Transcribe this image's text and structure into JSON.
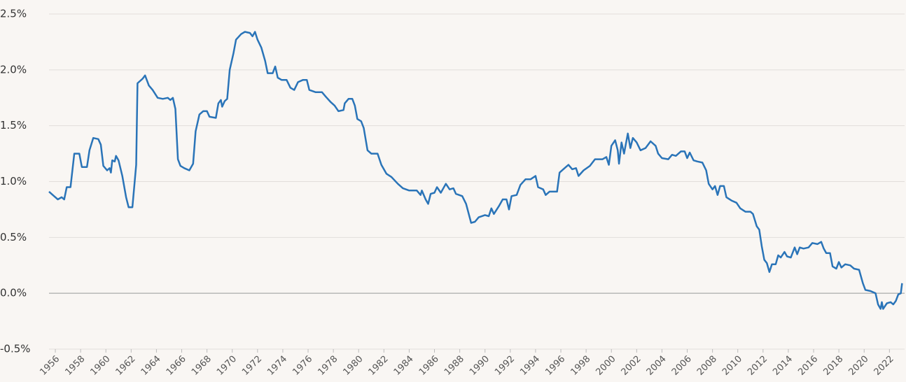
{
  "chart_data": {
    "type": "line",
    "x": [
      1955.5,
      1955.9,
      1956.2,
      1956.5,
      1956.7,
      1956.9,
      1957.2,
      1957.5,
      1957.9,
      1958.1,
      1958.5,
      1958.7,
      1959.0,
      1959.4,
      1959.6,
      1959.8,
      1960.1,
      1960.3,
      1960.4,
      1960.5,
      1960.7,
      1960.8,
      1961.0,
      1961.3,
      1961.6,
      1961.8,
      1962.1,
      1962.4,
      1962.5,
      1962.9,
      1963.1,
      1963.4,
      1963.7,
      1964.1,
      1964.5,
      1964.9,
      1965.1,
      1965.3,
      1965.5,
      1965.7,
      1965.9,
      1966.2,
      1966.6,
      1966.9,
      1967.1,
      1967.4,
      1967.7,
      1968.0,
      1968.2,
      1968.7,
      1968.9,
      1969.1,
      1969.2,
      1969.4,
      1969.6,
      1969.8,
      1970.1,
      1970.3,
      1970.7,
      1971.0,
      1971.4,
      1971.6,
      1971.8,
      1972.0,
      1972.3,
      1972.6,
      1972.8,
      1973.2,
      1973.4,
      1973.6,
      1973.9,
      1974.3,
      1974.6,
      1974.9,
      1975.2,
      1975.6,
      1975.9,
      1976.1,
      1976.6,
      1977.1,
      1977.4,
      1977.8,
      1978.1,
      1978.4,
      1978.8,
      1978.9,
      1979.2,
      1979.5,
      1979.7,
      1979.9,
      1980.2,
      1980.4,
      1980.7,
      1981.0,
      1981.5,
      1981.8,
      1982.2,
      1982.6,
      1983.1,
      1983.5,
      1984.0,
      1984.6,
      1984.9,
      1985.0,
      1985.3,
      1985.5,
      1985.7,
      1986.0,
      1986.2,
      1986.5,
      1986.9,
      1987.2,
      1987.5,
      1987.7,
      1988.2,
      1988.5,
      1988.9,
      1989.2,
      1989.5,
      1990.0,
      1990.3,
      1990.5,
      1990.7,
      1991.1,
      1991.4,
      1991.7,
      1991.9,
      1992.1,
      1992.5,
      1992.8,
      1993.2,
      1993.6,
      1994.0,
      1994.2,
      1994.6,
      1994.8,
      1995.1,
      1995.7,
      1995.9,
      1996.3,
      1996.6,
      1996.9,
      1997.2,
      1997.4,
      1997.8,
      1998.3,
      1998.7,
      1999.3,
      1999.6,
      1999.8,
      2000.0,
      2000.3,
      2000.5,
      2000.6,
      2000.8,
      2001.0,
      2001.3,
      2001.5,
      2001.7,
      2002.0,
      2002.3,
      2002.7,
      2003.1,
      2003.5,
      2003.7,
      2004.0,
      2004.5,
      2004.8,
      2005.1,
      2005.5,
      2005.8,
      2006.0,
      2006.2,
      2006.5,
      2006.8,
      2007.2,
      2007.5,
      2007.7,
      2008.0,
      2008.2,
      2008.4,
      2008.6,
      2008.9,
      2009.1,
      2009.5,
      2009.9,
      2010.2,
      2010.6,
      2011.0,
      2011.2,
      2011.5,
      2011.7,
      2011.9,
      2012.1,
      2012.3,
      2012.5,
      2012.7,
      2013.0,
      2013.2,
      2013.4,
      2013.7,
      2013.9,
      2014.2,
      2014.5,
      2014.7,
      2014.9,
      2015.2,
      2015.6,
      2015.9,
      2016.3,
      2016.6,
      2016.8,
      2017.0,
      2017.3,
      2017.5,
      2017.8,
      2018.0,
      2018.2,
      2018.5,
      2018.9,
      2019.2,
      2019.6,
      2019.9,
      2020.1,
      2020.5,
      2020.9,
      2021.1,
      2021.3,
      2021.4,
      2021.5,
      2021.8,
      2022.1,
      2022.3,
      2022.5,
      2022.7,
      2022.9,
      2023.0
    ],
    "series": [
      {
        "color": "#2a74b8",
        "values": [
          0.91,
          0.87,
          0.84,
          0.86,
          0.84,
          0.95,
          0.95,
          1.25,
          1.25,
          1.13,
          1.13,
          1.28,
          1.39,
          1.38,
          1.33,
          1.14,
          1.1,
          1.12,
          1.08,
          1.19,
          1.18,
          1.23,
          1.19,
          1.05,
          0.86,
          0.77,
          0.77,
          1.15,
          1.88,
          1.92,
          1.95,
          1.86,
          1.82,
          1.75,
          1.74,
          1.75,
          1.73,
          1.75,
          1.65,
          1.2,
          1.14,
          1.12,
          1.1,
          1.16,
          1.45,
          1.6,
          1.63,
          1.63,
          1.58,
          1.57,
          1.7,
          1.73,
          1.67,
          1.72,
          1.74,
          2.0,
          2.15,
          2.27,
          2.32,
          2.34,
          2.33,
          2.3,
          2.34,
          2.27,
          2.2,
          2.08,
          1.97,
          1.97,
          2.03,
          1.93,
          1.91,
          1.91,
          1.84,
          1.82,
          1.89,
          1.91,
          1.91,
          1.82,
          1.8,
          1.8,
          1.76,
          1.71,
          1.68,
          1.63,
          1.64,
          1.7,
          1.74,
          1.74,
          1.68,
          1.56,
          1.54,
          1.48,
          1.28,
          1.25,
          1.25,
          1.15,
          1.07,
          1.04,
          0.98,
          0.94,
          0.92,
          0.92,
          0.88,
          0.92,
          0.84,
          0.8,
          0.89,
          0.9,
          0.95,
          0.9,
          0.98,
          0.93,
          0.94,
          0.89,
          0.87,
          0.8,
          0.63,
          0.64,
          0.68,
          0.7,
          0.69,
          0.76,
          0.71,
          0.78,
          0.84,
          0.84,
          0.75,
          0.87,
          0.88,
          0.97,
          1.02,
          1.02,
          1.05,
          0.95,
          0.93,
          0.88,
          0.91,
          0.91,
          1.08,
          1.12,
          1.15,
          1.11,
          1.12,
          1.05,
          1.1,
          1.14,
          1.2,
          1.2,
          1.22,
          1.15,
          1.32,
          1.37,
          1.28,
          1.16,
          1.35,
          1.25,
          1.43,
          1.3,
          1.39,
          1.35,
          1.28,
          1.3,
          1.36,
          1.32,
          1.25,
          1.21,
          1.2,
          1.24,
          1.23,
          1.27,
          1.27,
          1.21,
          1.26,
          1.19,
          1.18,
          1.17,
          1.1,
          0.98,
          0.93,
          0.96,
          0.88,
          0.96,
          0.96,
          0.86,
          0.83,
          0.81,
          0.76,
          0.73,
          0.73,
          0.71,
          0.6,
          0.57,
          0.42,
          0.3,
          0.27,
          0.19,
          0.26,
          0.26,
          0.34,
          0.32,
          0.37,
          0.33,
          0.32,
          0.41,
          0.35,
          0.41,
          0.4,
          0.41,
          0.45,
          0.44,
          0.46,
          0.4,
          0.36,
          0.36,
          0.24,
          0.22,
          0.28,
          0.23,
          0.26,
          0.25,
          0.22,
          0.21,
          0.09,
          0.03,
          0.02,
          0.0,
          -0.1,
          -0.14,
          -0.08,
          -0.14,
          -0.09,
          -0.08,
          -0.1,
          -0.07,
          -0.01,
          0.0,
          0.09
        ]
      }
    ],
    "xlim": [
      1955.5,
      2023.2
    ],
    "xticks": [
      1956,
      1958,
      1960,
      1962,
      1964,
      1966,
      1968,
      1970,
      1972,
      1974,
      1976,
      1978,
      1980,
      1982,
      1984,
      1986,
      1988,
      1990,
      1992,
      1994,
      1996,
      1998,
      2000,
      2002,
      2004,
      2006,
      2008,
      2010,
      2012,
      2014,
      2016,
      2018,
      2020,
      2022
    ],
    "ylim": [
      -0.5,
      2.5
    ],
    "yticks": [
      {
        "value": -0.5,
        "label": "-0.5%"
      },
      {
        "value": 0,
        "label": "0.0%"
      },
      {
        "value": 0.5,
        "label": "0.5%"
      },
      {
        "value": 1,
        "label": "1.0%"
      },
      {
        "value": 1.5,
        "label": "1.5%"
      },
      {
        "value": 2,
        "label": "2.0%"
      },
      {
        "value": 2.5,
        "label": "2.5%"
      }
    ],
    "grid": true
  }
}
